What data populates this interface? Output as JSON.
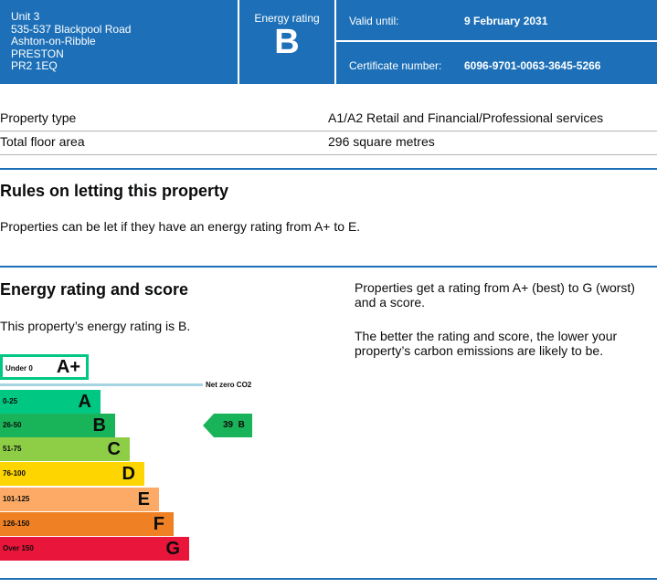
{
  "header": {
    "address": [
      "Unit 3",
      "535-537 Blackpool Road",
      "Ashton-on-Ribble",
      "PRESTON",
      "PR2 1EQ"
    ],
    "energy_rating_label": "Energy rating",
    "energy_rating": "B",
    "valid_until_label": "Valid until:",
    "valid_until": "9 February 2031",
    "certificate_label": "Certificate number:",
    "certificate_number": "6096-9701-0063-3645-5266"
  },
  "summary": [
    {
      "label": "Property type",
      "value": "A1/A2 Retail and Financial/Professional services"
    },
    {
      "label": "Total floor area",
      "value": "296 square metres"
    }
  ],
  "letting": {
    "heading": "Rules on letting this property",
    "text": "Properties can be let if they have an energy rating from A+ to E."
  },
  "rating": {
    "heading": "Energy rating and score",
    "text": "This property’s energy rating is B.",
    "side_text_1": "Properties get a rating from A+ (best) to G (worst) and a score.",
    "side_text_2": "The better the rating and score, the lower your property’s carbon emissions are likely to be.",
    "net_zero": "Net zero CO2",
    "current": "39  B",
    "bands": [
      {
        "range": "Under 0",
        "grade": "A+",
        "color": "#00c781"
      },
      {
        "range": "0-25",
        "grade": "A",
        "color": "#00c781"
      },
      {
        "range": "26-50",
        "grade": "B",
        "color": "#19b459"
      },
      {
        "range": "51-75",
        "grade": "C",
        "color": "#8dce46"
      },
      {
        "range": "76-100",
        "grade": "D",
        "color": "#ffd500"
      },
      {
        "range": "101-125",
        "grade": "E",
        "color": "#fcaa65"
      },
      {
        "range": "126-150",
        "grade": "F",
        "color": "#ef8023"
      },
      {
        "range": "Over 150",
        "grade": "G",
        "color": "#e9153b"
      }
    ]
  }
}
